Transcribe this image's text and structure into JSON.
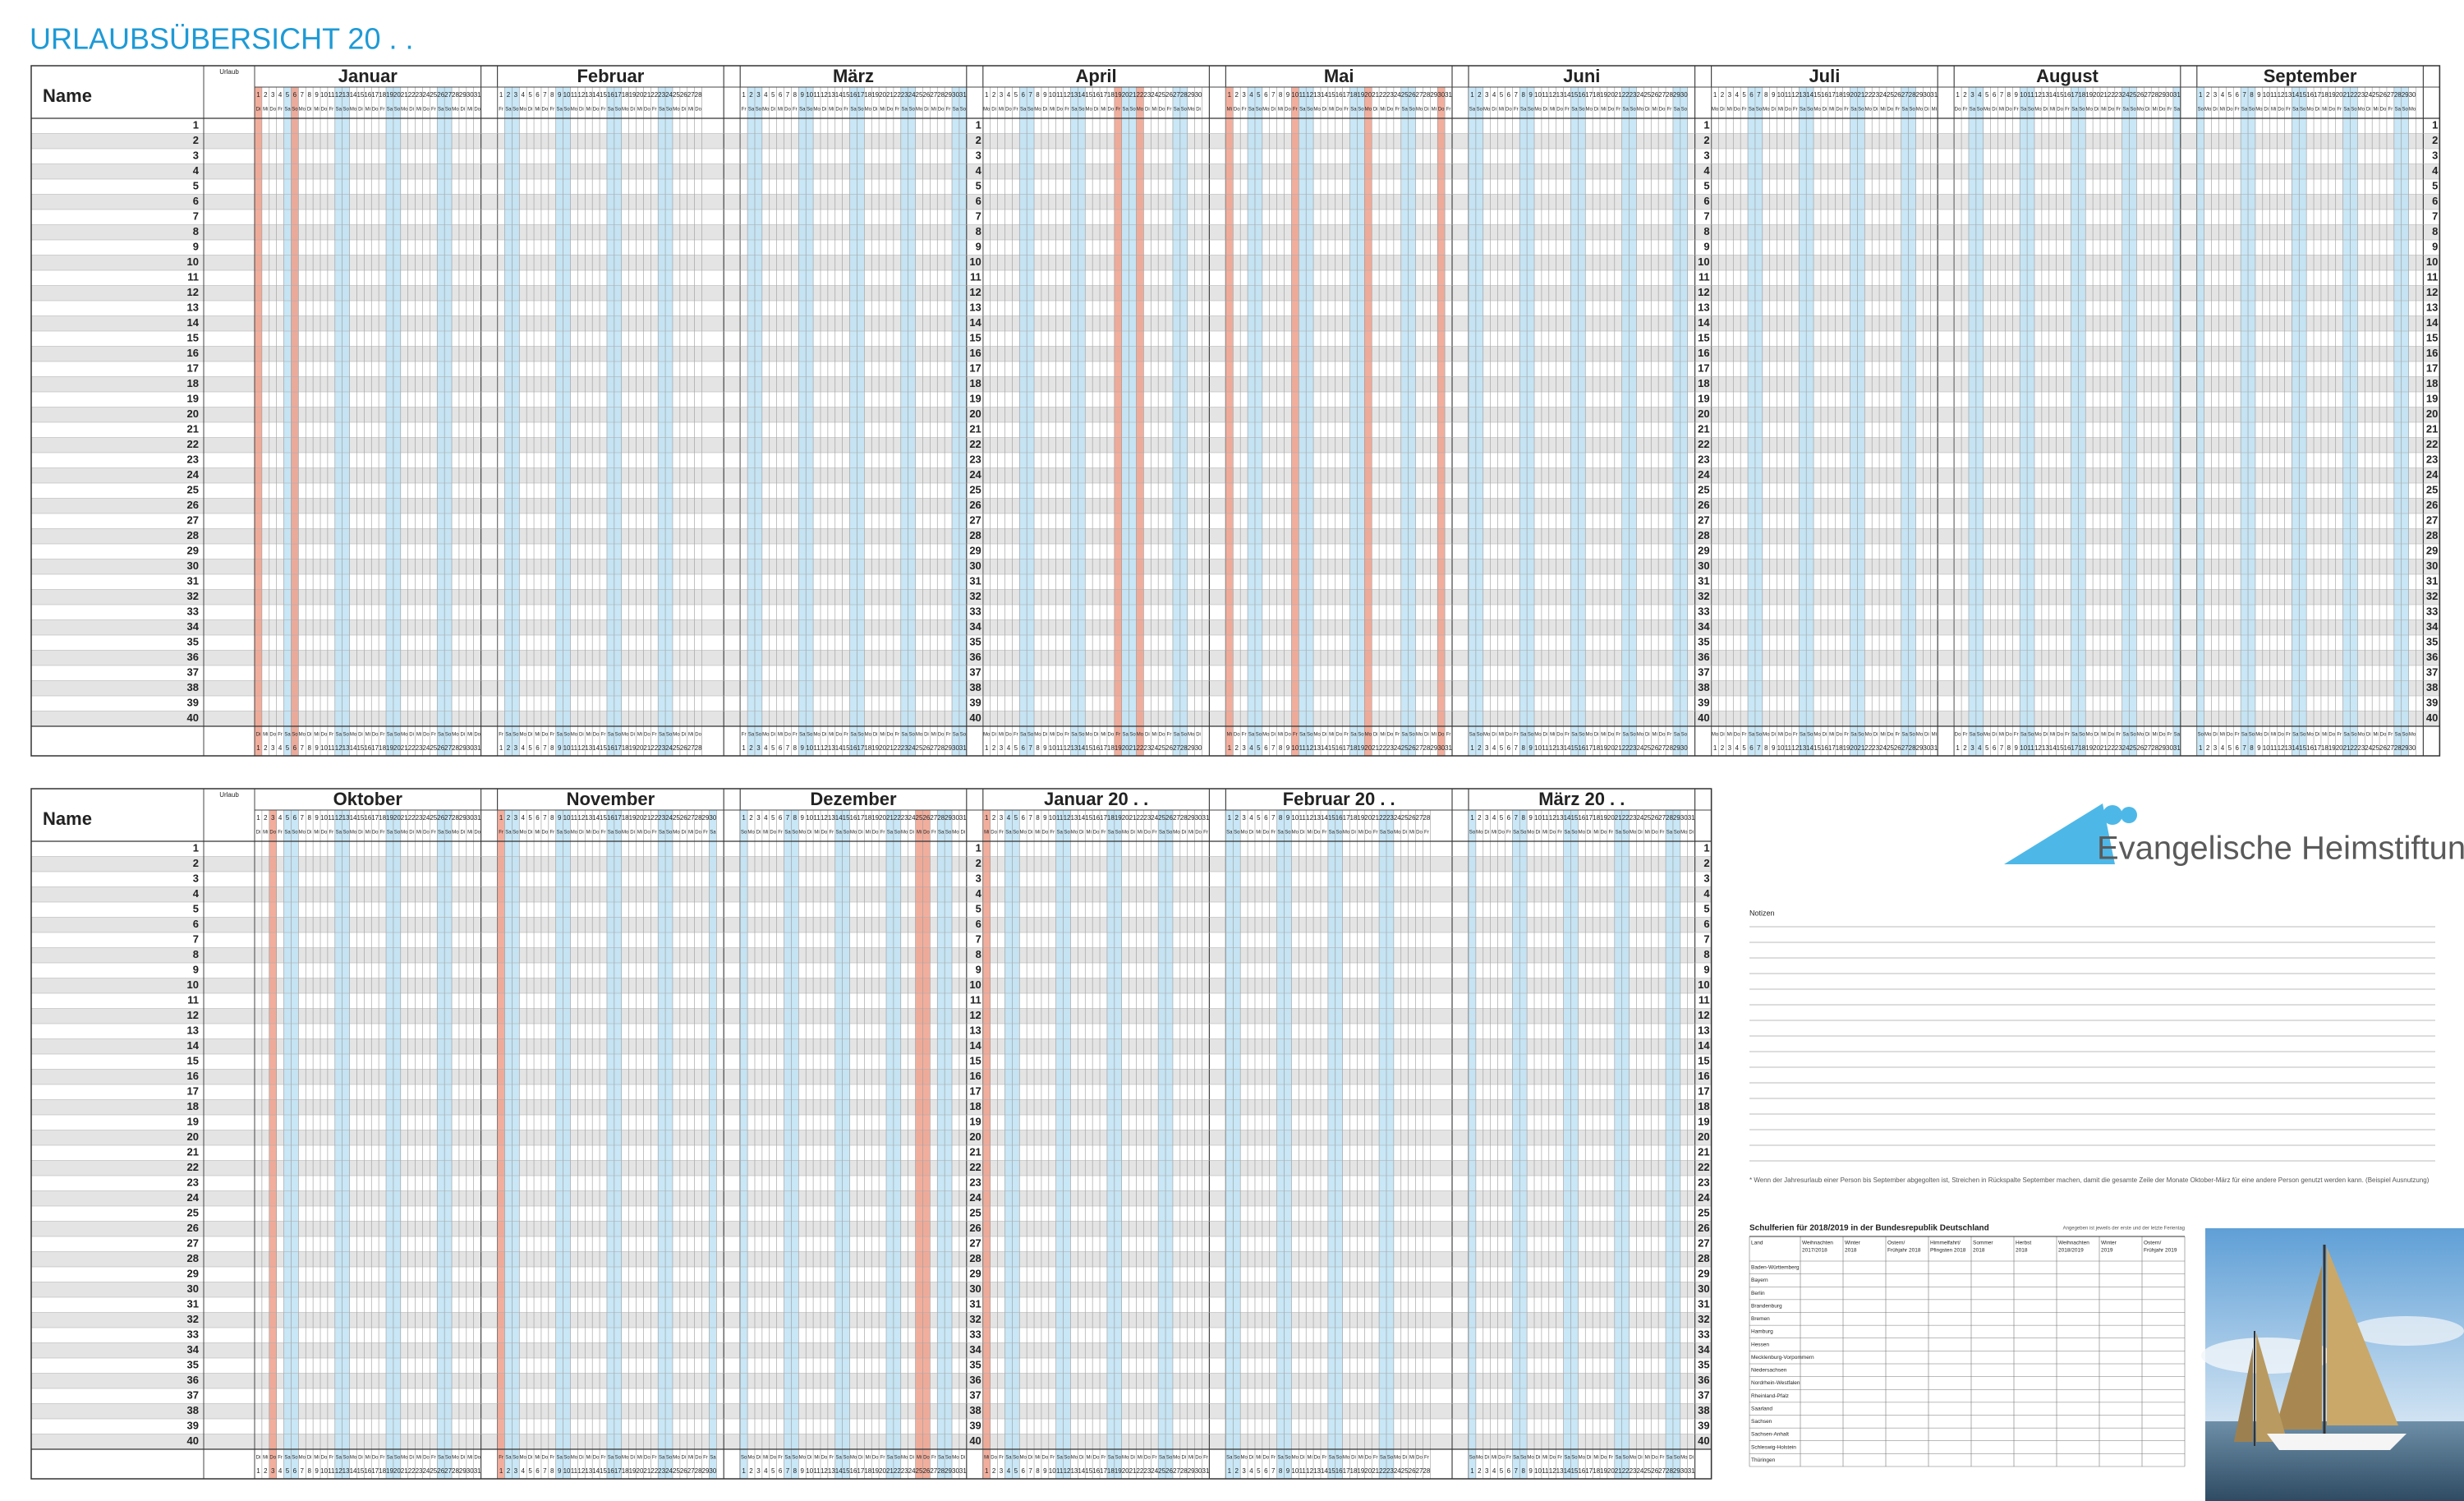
{
  "header": {
    "title": "URLAUBSÜBERSICHT 20 . ."
  },
  "planner": {
    "name_label": "Name",
    "leave_label": "Urlaub",
    "rows": [
      1,
      2,
      3,
      4,
      5,
      6,
      7,
      8,
      9,
      10,
      11,
      12,
      13,
      14,
      15,
      16,
      17,
      18,
      19,
      20,
      21,
      22,
      23,
      24,
      25,
      26,
      27,
      28,
      29,
      30,
      31,
      32,
      33,
      34,
      35,
      36,
      37,
      38,
      39,
      40
    ],
    "day_numbers": [
      1,
      2,
      3,
      4,
      5,
      6,
      7,
      8,
      9,
      10,
      11,
      12,
      13,
      14,
      15,
      16,
      17,
      18,
      19,
      20,
      21,
      22,
      23,
      24,
      25,
      26,
      27,
      28,
      29,
      30,
      31
    ],
    "weekdays": [
      "Mo",
      "Di",
      "Mi",
      "Do",
      "Fr",
      "Sa",
      "So"
    ],
    "blocks": [
      {
        "months": [
          {
            "name": "Januar",
            "days": 31,
            "start": 1,
            "holidays": [
              1,
              6
            ]
          },
          {
            "name": "Februar",
            "days": 28,
            "start": 4,
            "holidays": []
          },
          {
            "name": "März",
            "days": 31,
            "start": 4,
            "holidays": []
          },
          {
            "name": "April",
            "days": 30,
            "start": 0,
            "holidays": [
              19,
              22
            ]
          },
          {
            "name": "Mai",
            "days": 31,
            "start": 2,
            "holidays": [
              1,
              10,
              20,
              30
            ]
          },
          {
            "name": "Juni",
            "days": 30,
            "start": 5,
            "holidays": []
          },
          {
            "name": "Juli",
            "days": 31,
            "start": 0,
            "holidays": []
          },
          {
            "name": "August",
            "days": 31,
            "start": 3,
            "holidays": []
          },
          {
            "name": "September",
            "days": 30,
            "start": 6,
            "holidays": []
          }
        ]
      },
      {
        "months": [
          {
            "name": "Oktober",
            "days": 31,
            "start": 1,
            "holidays": [
              3
            ]
          },
          {
            "name": "November",
            "days": 30,
            "start": 4,
            "holidays": [
              1
            ]
          },
          {
            "name": "Dezember",
            "days": 31,
            "start": 6,
            "holidays": [
              25,
              26
            ]
          },
          {
            "name": "Januar 20 . .",
            "days": 31,
            "start": 2,
            "holidays": [
              1
            ]
          },
          {
            "name": "Februar 20 . .",
            "days": 28,
            "start": 5,
            "holidays": []
          },
          {
            "name": "März 20 . .",
            "days": 31,
            "start": 6,
            "holidays": []
          }
        ]
      }
    ]
  },
  "logo": {
    "text": "Evangelische Heimstiftung"
  },
  "notes": {
    "label": "Notizen",
    "footnote": "* Wenn der Jahresurlaub einer Person bis September abgegolten ist, Streichen in Rückspalte September machen, damit die gesamte Zeile der Monate Oktober-März für eine andere Person genutzt werden kann. (Beispiel Ausnutzung)"
  },
  "school_holidays": {
    "title": "Schulferien für 2018/2019 in der Bundesrepublik Deutschland",
    "note": "Angegeben ist jeweils der erste und der letzte Ferientag",
    "columns": [
      [
        "Land"
      ],
      [
        "Weihnachten",
        "2017/2018"
      ],
      [
        "Winter",
        "2018"
      ],
      [
        "Ostern/",
        "Frühjahr 2018"
      ],
      [
        "Himmelfahrt/",
        "Pfingsten 2018"
      ],
      [
        "Sommer",
        "2018"
      ],
      [
        "Herbst",
        "2018"
      ],
      [
        "Weihnachten",
        "2018/2019"
      ],
      [
        "Winter",
        "2019"
      ],
      [
        "Ostern/",
        "Frühjahr 2019"
      ]
    ],
    "states": [
      "Baden-Württemberg",
      "Bayern",
      "Berlin",
      "Brandenburg",
      "Bremen",
      "Hamburg",
      "Hessen",
      "Mecklenburg-Vorpommern",
      "Niedersachsen",
      "Nordrhein-Westfalen",
      "Rheinland-Pfalz",
      "Saarland",
      "Sachsen",
      "Sachsen-Anhalt",
      "Schleswig-Holstein",
      "Thüringen"
    ]
  }
}
